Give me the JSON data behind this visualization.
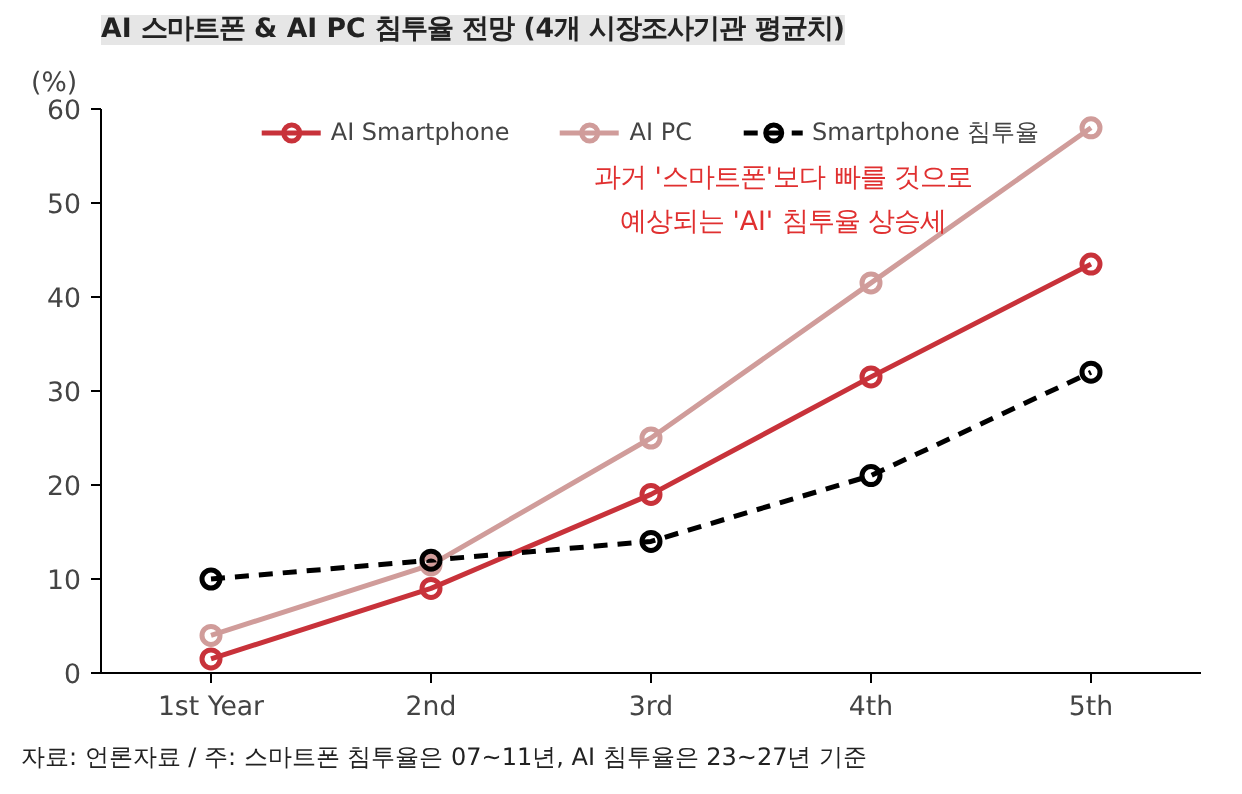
{
  "chart_data": {
    "type": "line",
    "title": "AI 스마트폰 & AI PC 침투율 전망 (4개 시장조사기관 평균치)",
    "ylabel": "(%)",
    "categories": [
      "1st Year",
      "2nd",
      "3rd",
      "4th",
      "5th"
    ],
    "series": [
      {
        "name": "AI Smartphone",
        "color": "#c8323a",
        "values": [
          1.5,
          9,
          19,
          31.5,
          43.5
        ]
      },
      {
        "name": "AI PC",
        "color": "#d09c9a",
        "values": [
          4,
          11.5,
          25,
          41.5,
          58
        ]
      },
      {
        "name": "Smartphone 침투율",
        "color": "#000000",
        "values": [
          10,
          12,
          14,
          21,
          32
        ],
        "line_style": "dashed"
      }
    ],
    "ylim": [
      0,
      60
    ],
    "yticks": [
      0,
      10,
      20,
      30,
      40,
      50,
      60
    ],
    "grid": false,
    "legend": "top",
    "marker": "circle",
    "line_style": "solid",
    "annotations": [
      "과거 '스마트폰'보다 빠를 것으로\n예상되는 'AI' 침투율 상승세",
      "자료: 언론자료   /   주: 스마트폰 침투율은 07~11년, AI 침투율은 23~27년 기준"
    ]
  }
}
